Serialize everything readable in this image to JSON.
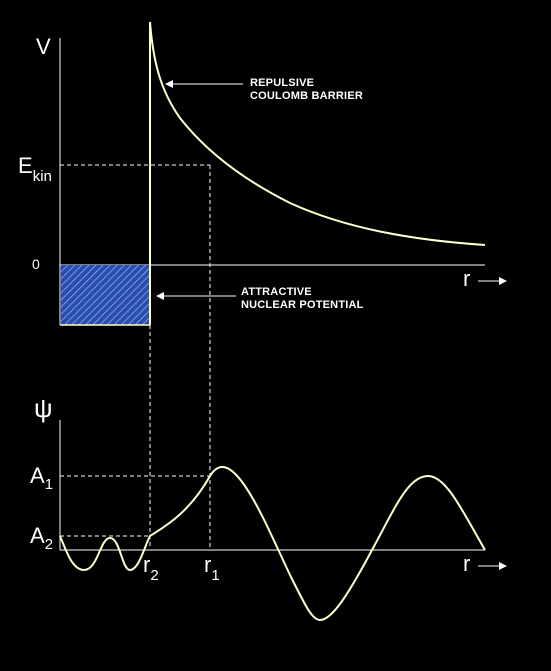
{
  "colors": {
    "background": "#000000",
    "curve": "#ffffcc",
    "axis": "#ffffff",
    "well_fill": "#2a4db0",
    "well_hatch": "#aac4ff"
  },
  "potential_panel": {
    "v_label": "V",
    "ekin_label": "E",
    "ekin_sub": "kin",
    "zero_label": "0",
    "r_label": "r",
    "barrier_note": [
      "REPULSIVE",
      "COULOMB BARRIER"
    ],
    "well_note": [
      "ATTRACTIVE",
      "NUCLEAR POTENTIAL"
    ]
  },
  "wave_panel": {
    "psi_label": "ψ",
    "a1_label": "A",
    "a1_sub": "1",
    "a2_label": "A",
    "a2_sub": "2",
    "r2_label": "r",
    "r2_sub": "2",
    "r1_label": "r",
    "r1_sub": "1",
    "r_label": "r"
  }
}
